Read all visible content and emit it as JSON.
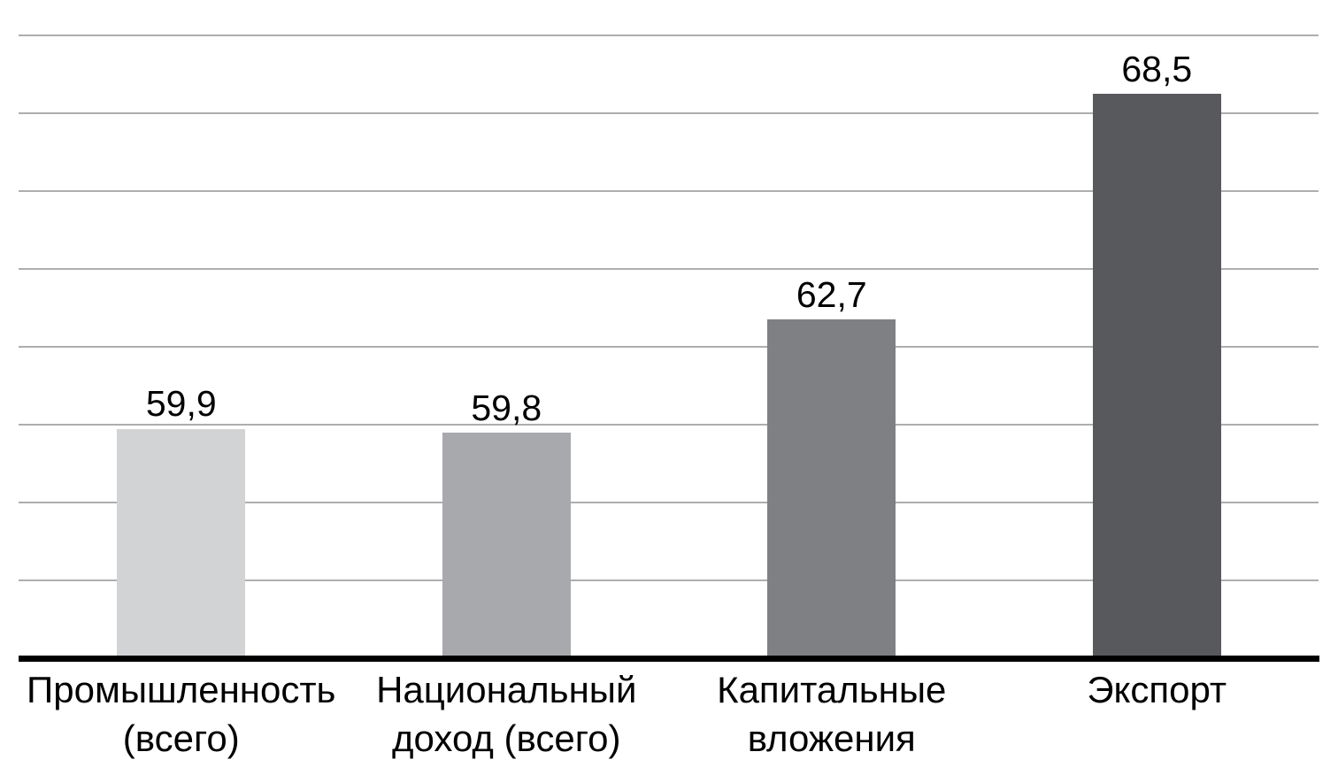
{
  "chart_data": {
    "type": "bar",
    "title": "",
    "xlabel": "",
    "ylabel": "",
    "categories": [
      "Промышленность\n(всего)",
      "Национальный\nдоход (всего)",
      "Капитальные\nвложения",
      "Экспорт"
    ],
    "values": [
      59.9,
      59.8,
      62.7,
      68.5
    ],
    "value_labels": [
      "59,9",
      "59,8",
      "62,7",
      "68,5"
    ],
    "bar_colors": [
      "#d2d3d5",
      "#a7a9ac",
      "#7f8083",
      "#58595c"
    ],
    "ylim": [
      54,
      70
    ],
    "gridline_step": 2,
    "grid": true,
    "legend_position": "none",
    "y_tick_labels_visible": false,
    "gridline_color": "#aeaeae",
    "axis_color": "#000000",
    "label_color": "#000000"
  }
}
